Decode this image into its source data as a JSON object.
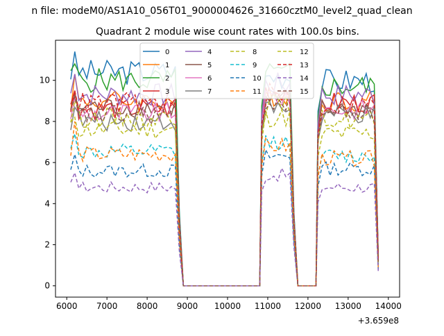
{
  "figure": {
    "suptitle": "n file: modeM0/AS1A10_056T01_9000004626_31660cztM0_level2_quad_clean",
    "title": "Quadrant 2 module wise count rates with 100.0s bins."
  },
  "chart_data": {
    "type": "line",
    "title": "Quadrant 2 module wise count rates with 100.0s bins.",
    "xlabel": "",
    "ylabel": "",
    "x_offset_label": "+3.659e8",
    "xlim": [
      5720,
      14280
    ],
    "ylim": [
      -0.55,
      11.95
    ],
    "xticks": [
      6000,
      7000,
      8000,
      9000,
      10000,
      11000,
      12000,
      13000,
      14000
    ],
    "yticks": [
      0,
      2,
      4,
      6,
      8,
      10
    ],
    "grid": false,
    "legend": {
      "placement": "top-center",
      "columns": 4
    },
    "segments": [
      {
        "start": 6100,
        "end": 8800
      },
      {
        "start": 10850,
        "end": 11650
      },
      {
        "start": 12250,
        "end": 13750
      }
    ],
    "gaps": [
      [
        8900,
        10800
      ],
      [
        11700,
        12200
      ]
    ],
    "series": [
      {
        "name": "0",
        "color": "#1f77b4",
        "dash": "solid",
        "levels": [
          10.4,
          10.2,
          10.0
        ],
        "first_peak": 11.4
      },
      {
        "name": "1",
        "color": "#ff7f0e",
        "dash": "solid",
        "levels": [
          9.0,
          9.3,
          9.0
        ],
        "first_peak": 10.3
      },
      {
        "name": "2",
        "color": "#2ca02c",
        "dash": "solid",
        "levels": [
          10.0,
          10.3,
          9.7
        ],
        "first_peak": 10.8
      },
      {
        "name": "3",
        "color": "#d62728",
        "dash": "solid",
        "levels": [
          8.6,
          9.5,
          8.9
        ],
        "first_peak": 9.5
      },
      {
        "name": "4",
        "color": "#9467bd",
        "dash": "solid",
        "levels": [
          9.3,
          9.8,
          9.3
        ],
        "first_peak": 10.3
      },
      {
        "name": "5",
        "color": "#8c564b",
        "dash": "solid",
        "levels": [
          8.7,
          9.0,
          8.6
        ],
        "first_peak": 9.3
      },
      {
        "name": "6",
        "color": "#e377c2",
        "dash": "solid",
        "levels": [
          8.4,
          9.2,
          8.6
        ],
        "first_peak": 9.1
      },
      {
        "name": "7",
        "color": "#7f7f7f",
        "dash": "solid",
        "levels": [
          8.0,
          8.6,
          8.3
        ],
        "first_peak": 8.7
      },
      {
        "name": "8",
        "color": "#bcbd22",
        "dash": "dashed",
        "levels": [
          7.6,
          8.2,
          7.4
        ],
        "first_peak": 8.2
      },
      {
        "name": "9",
        "color": "#17becf",
        "dash": "dashed",
        "levels": [
          6.5,
          7.0,
          6.3
        ],
        "first_peak": 7.4
      },
      {
        "name": "10",
        "color": "#1f77b4",
        "dash": "dashed",
        "levels": [
          5.6,
          6.3,
          5.7
        ],
        "first_peak": 6.4
      },
      {
        "name": "11",
        "color": "#ff7f0e",
        "dash": "dashed",
        "levels": [
          6.4,
          6.8,
          6.2
        ],
        "first_peak": 8.0
      },
      {
        "name": "12",
        "color": "#bcbd22",
        "dash": "dashed",
        "levels": [
          8.2,
          8.8,
          8.1
        ],
        "first_peak": 9.0
      },
      {
        "name": "13",
        "color": "#d62728",
        "dash": "dashed",
        "levels": [
          8.9,
          9.3,
          8.8
        ],
        "first_peak": 9.5
      },
      {
        "name": "14",
        "color": "#9467bd",
        "dash": "dashed",
        "levels": [
          4.8,
          5.4,
          4.8
        ],
        "first_peak": 5.5
      },
      {
        "name": "15",
        "color": "#8c564b",
        "dash": "dashed",
        "levels": [
          8.3,
          9.0,
          8.4
        ],
        "first_peak": 9.2
      }
    ]
  }
}
